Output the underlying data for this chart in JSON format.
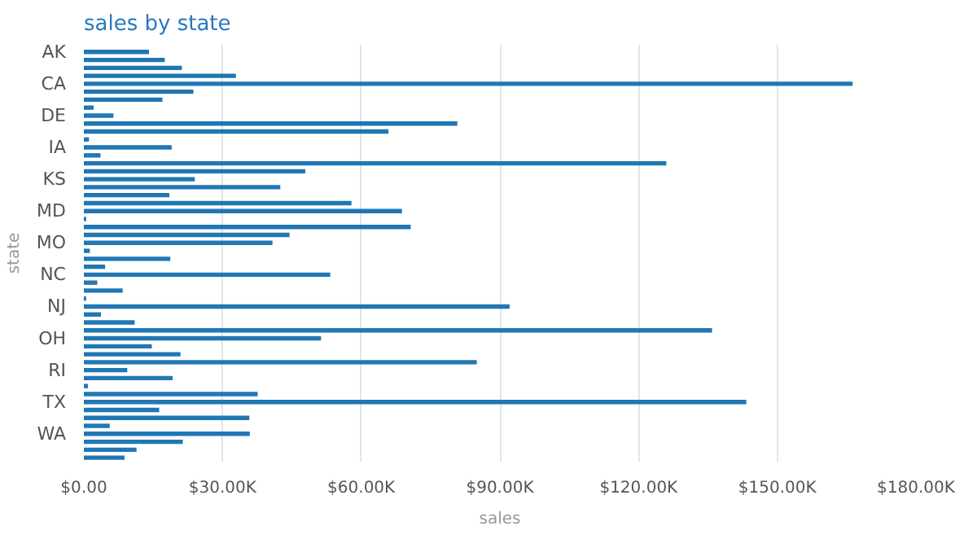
{
  "chart_data": {
    "type": "bar",
    "orientation": "horizontal",
    "title": "sales by state",
    "xlabel": "sales",
    "ylabel": "state",
    "categories": [
      "AK",
      null,
      null,
      null,
      "CA",
      null,
      null,
      null,
      "DE",
      null,
      null,
      null,
      "IA",
      null,
      null,
      null,
      "KS",
      null,
      null,
      null,
      "MD",
      null,
      null,
      null,
      "MO",
      null,
      null,
      null,
      "NC",
      null,
      null,
      null,
      "NJ",
      null,
      null,
      null,
      "OH",
      null,
      null,
      null,
      "RI",
      null,
      null,
      null,
      "TX",
      null,
      null,
      null,
      "WA",
      null,
      null,
      null
    ],
    "values": [
      14100,
      17500,
      21200,
      32900,
      166300,
      23700,
      17000,
      2100,
      6400,
      80800,
      65900,
      1100,
      19000,
      3600,
      126000,
      47900,
      24000,
      42500,
      18500,
      57900,
      68800,
      500,
      70700,
      44500,
      40800,
      1300,
      18700,
      4600,
      53300,
      2900,
      8400,
      500,
      92100,
      3700,
      11000,
      135900,
      51300,
      14700,
      20900,
      85000,
      9400,
      19200,
      900,
      37600,
      143300,
      16300,
      35800,
      5600,
      35900,
      21400,
      11400,
      8800
    ],
    "color": "#2077b4",
    "xlim": [
      0,
      180000
    ],
    "xticks": [
      {
        "value": 0,
        "label": "$0.00"
      },
      {
        "value": 30000,
        "label": "$30.00K"
      },
      {
        "value": 60000,
        "label": "$60.00K"
      },
      {
        "value": 90000,
        "label": "$90.00K"
      },
      {
        "value": 120000,
        "label": "$120.00K"
      },
      {
        "value": 150000,
        "label": "$150.00K"
      },
      {
        "value": 180000,
        "label": "$180.00K"
      }
    ],
    "grid": "x"
  }
}
